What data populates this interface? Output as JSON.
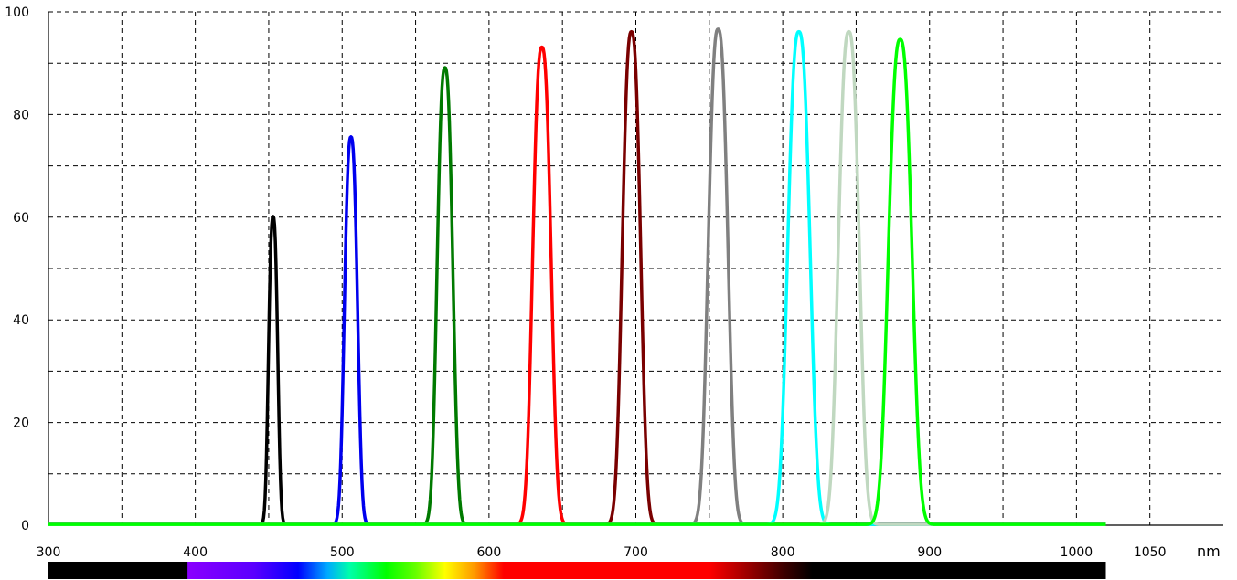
{
  "chart_data": {
    "type": "line",
    "title": "",
    "xlabel": "nm",
    "ylabel": "",
    "xlim": [
      300,
      1100
    ],
    "ylim": [
      0,
      100
    ],
    "grid": true,
    "x_ticks": [
      300,
      400,
      500,
      600,
      700,
      800,
      900,
      1000,
      1050
    ],
    "x_tick_labels": [
      "300",
      "400",
      "500",
      "600",
      "700",
      "800",
      "900",
      "1000",
      "1050"
    ],
    "x_grid": [
      350,
      400,
      450,
      500,
      550,
      600,
      650,
      700,
      750,
      800,
      850,
      900,
      950,
      1000,
      1050
    ],
    "y_ticks": [
      0,
      20,
      40,
      60,
      80,
      100
    ],
    "y_tick_labels": [
      "0",
      "20",
      "40",
      "60",
      "80",
      "100"
    ],
    "y_grid": [
      10,
      20,
      30,
      40,
      50,
      60,
      70,
      80,
      90,
      100
    ],
    "x_range_drawn": [
      300,
      1020
    ],
    "series": [
      {
        "center": 453,
        "peak": 60,
        "fwhm": 7,
        "color": "#000000"
      },
      {
        "center": 506,
        "peak": 75.5,
        "fwhm": 10,
        "color": "#0000ee"
      },
      {
        "center": 570,
        "peak": 89,
        "fwhm": 12,
        "color": "#007a00"
      },
      {
        "center": 636,
        "peak": 93,
        "fwhm": 14,
        "color": "#ff0000"
      },
      {
        "center": 697,
        "peak": 96,
        "fwhm": 14,
        "color": "#7a0000"
      },
      {
        "center": 756,
        "peak": 96.5,
        "fwhm": 15,
        "color": "#808080"
      },
      {
        "center": 811,
        "peak": 96,
        "fwhm": 17,
        "color": "#00ffff"
      },
      {
        "center": 845,
        "peak": 96,
        "fwhm": 16,
        "color": "#c0d8c0"
      },
      {
        "center": 880,
        "peak": 94.5,
        "fwhm": 18,
        "color": "#00ff00"
      }
    ],
    "spectrum_bar": {
      "range": [
        300,
        1020
      ],
      "stops": [
        {
          "nm": 300,
          "color": "#000000"
        },
        {
          "nm": 394,
          "color": "#000000"
        },
        {
          "nm": 395,
          "color": "#8a00ff"
        },
        {
          "nm": 440,
          "color": "#5a00ff"
        },
        {
          "nm": 470,
          "color": "#0000ff"
        },
        {
          "nm": 490,
          "color": "#00aaff"
        },
        {
          "nm": 505,
          "color": "#00ffaa"
        },
        {
          "nm": 530,
          "color": "#00ff00"
        },
        {
          "nm": 550,
          "color": "#66ff00"
        },
        {
          "nm": 570,
          "color": "#ffff00"
        },
        {
          "nm": 590,
          "color": "#ff9900"
        },
        {
          "nm": 610,
          "color": "#ff0000"
        },
        {
          "nm": 750,
          "color": "#ff0000"
        },
        {
          "nm": 800,
          "color": "#400000"
        },
        {
          "nm": 820,
          "color": "#000000"
        },
        {
          "nm": 1020,
          "color": "#000000"
        }
      ]
    }
  }
}
